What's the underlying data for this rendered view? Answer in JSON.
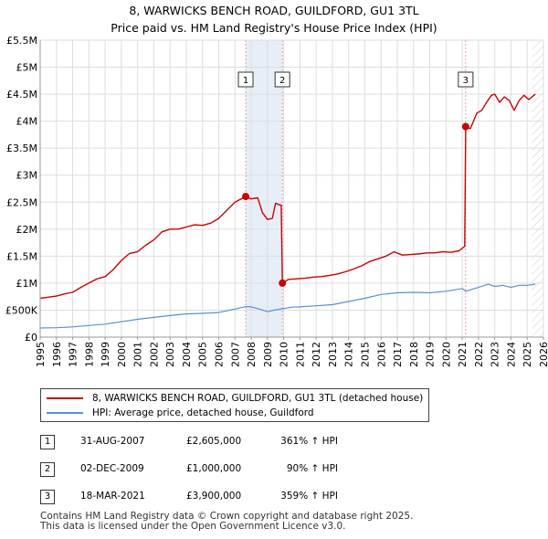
{
  "title": {
    "line1": "8, WARWICKS BENCH ROAD, GUILDFORD, GU1 3TL",
    "line2": "Price paid vs. HM Land Registry's House Price Index (HPI)"
  },
  "colors": {
    "property_line": "#cc0000",
    "hpi_line": "#5b8ed6",
    "shade": "#e8eef8",
    "grid": "#dddddd",
    "marker_line": "#e89aa8"
  },
  "legend": {
    "property_label": "8, WARWICKS BENCH ROAD, GUILDFORD, GU1 3TL (detached house)",
    "hpi_label": "HPI: Average price, detached house, Guildford"
  },
  "transactions": [
    {
      "num": "1",
      "date": "31-AUG-2007",
      "price": "£2,605,000",
      "hpi": "361% ↑ HPI"
    },
    {
      "num": "2",
      "date": "02-DEC-2009",
      "price": "£1,000,000",
      "hpi": "90% ↑ HPI"
    },
    {
      "num": "3",
      "date": "18-MAR-2021",
      "price": "£3,900,000",
      "hpi": "359% ↑ HPI"
    }
  ],
  "footer": {
    "line1": "Contains HM Land Registry data © Crown copyright and database right 2025.",
    "line2": "This data is licensed under the Open Government Licence v3.0."
  },
  "chart_data": {
    "type": "line",
    "title": "8, WARWICKS BENCH ROAD, GUILDFORD, GU1 3TL — Price paid vs. HM Land Registry's House Price Index (HPI)",
    "xlabel": "",
    "ylabel": "",
    "xlim": [
      1995,
      2026
    ],
    "ylim": [
      0,
      5500000
    ],
    "grid": true,
    "legend_position": "bottom",
    "y_ticks": [
      {
        "value": 0,
        "label": "£0"
      },
      {
        "value": 500000,
        "label": "£500K"
      },
      {
        "value": 1000000,
        "label": "£1M"
      },
      {
        "value": 1500000,
        "label": "£1.5M"
      },
      {
        "value": 2000000,
        "label": "£2M"
      },
      {
        "value": 2500000,
        "label": "£2.5M"
      },
      {
        "value": 3000000,
        "label": "£3M"
      },
      {
        "value": 3500000,
        "label": "£3.5M"
      },
      {
        "value": 4000000,
        "label": "£4M"
      },
      {
        "value": 4500000,
        "label": "£4.5M"
      },
      {
        "value": 5000000,
        "label": "£5M"
      },
      {
        "value": 5500000,
        "label": "£5.5M"
      }
    ],
    "x_ticks": [
      "1995",
      "1996",
      "1997",
      "1998",
      "1999",
      "2000",
      "2001",
      "2002",
      "2003",
      "2004",
      "2005",
      "2006",
      "2007",
      "2008",
      "2009",
      "2010",
      "2011",
      "2012",
      "2013",
      "2014",
      "2015",
      "2016",
      "2017",
      "2018",
      "2019",
      "2020",
      "2021",
      "2022",
      "2023",
      "2024",
      "2025",
      "2026"
    ],
    "shaded_ranges": [
      [
        2007.66,
        2009.92
      ]
    ],
    "projection_start": 2025.3,
    "series": [
      {
        "name": "8, WARWICKS BENCH ROAD, GUILDFORD, GU1 3TL (detached house)",
        "color": "#cc0000",
        "x": [
          1995.0,
          1995.5,
          1996.0,
          1996.5,
          1997.0,
          1997.5,
          1998.0,
          1998.5,
          1999.0,
          1999.5,
          2000.0,
          2000.5,
          2001.0,
          2001.5,
          2002.0,
          2002.5,
          2003.0,
          2003.5,
          2004.0,
          2004.5,
          2005.0,
          2005.5,
          2006.0,
          2006.5,
          2007.0,
          2007.66,
          2008.0,
          2008.4,
          2008.7,
          2009.0,
          2009.3,
          2009.5,
          2009.85,
          2009.92,
          2010.3,
          2010.8,
          2011.3,
          2011.8,
          2012.3,
          2012.8,
          2013.3,
          2013.8,
          2014.3,
          2014.8,
          2015.3,
          2015.8,
          2016.3,
          2016.8,
          2017.3,
          2017.8,
          2018.3,
          2018.8,
          2019.3,
          2019.8,
          2020.3,
          2020.8,
          2021.15,
          2021.21,
          2021.5,
          2021.9,
          2022.2,
          2022.5,
          2022.8,
          2023.0,
          2023.3,
          2023.6,
          2023.9,
          2024.2,
          2024.5,
          2024.8,
          2025.1,
          2025.5
        ],
        "y": [
          720000,
          740000,
          760000,
          800000,
          830000,
          920000,
          1000000,
          1080000,
          1120000,
          1250000,
          1420000,
          1550000,
          1580000,
          1700000,
          1800000,
          1950000,
          2000000,
          2000000,
          2040000,
          2080000,
          2070000,
          2110000,
          2200000,
          2350000,
          2500000,
          2605000,
          2560000,
          2580000,
          2300000,
          2180000,
          2200000,
          2480000,
          2440000,
          1000000,
          1070000,
          1080000,
          1090000,
          1110000,
          1120000,
          1140000,
          1170000,
          1210000,
          1260000,
          1320000,
          1400000,
          1450000,
          1500000,
          1580000,
          1520000,
          1530000,
          1540000,
          1560000,
          1560000,
          1580000,
          1570000,
          1600000,
          1680000,
          3900000,
          3860000,
          4150000,
          4200000,
          4350000,
          4480000,
          4500000,
          4350000,
          4450000,
          4380000,
          4200000,
          4380000,
          4480000,
          4400000,
          4500000
        ]
      },
      {
        "name": "HPI: Average price, detached house, Guildford",
        "color": "#5b8ed6",
        "x": [
          1995.0,
          1996.0,
          1997.0,
          1998.0,
          1999.0,
          2000.0,
          2001.0,
          2002.0,
          2003.0,
          2004.0,
          2005.0,
          2006.0,
          2007.0,
          2007.66,
          2008.0,
          2008.5,
          2009.0,
          2009.4,
          2009.92,
          2010.5,
          2011.0,
          2012.0,
          2013.0,
          2014.0,
          2015.0,
          2016.0,
          2017.0,
          2018.0,
          2019.0,
          2020.0,
          2021.0,
          2021.21,
          2022.0,
          2022.6,
          2023.0,
          2023.5,
          2024.0,
          2024.5,
          2025.0,
          2025.5
        ],
        "y": [
          170000,
          175000,
          190000,
          215000,
          240000,
          285000,
          330000,
          365000,
          400000,
          430000,
          440000,
          455000,
          520000,
          565000,
          560000,
          520000,
          470000,
          500000,
          525000,
          555000,
          560000,
          580000,
          600000,
          660000,
          720000,
          790000,
          820000,
          830000,
          820000,
          850000,
          900000,
          849000,
          920000,
          980000,
          940000,
          960000,
          920000,
          960000,
          960000,
          980000
        ]
      }
    ],
    "sale_points": [
      {
        "label": "1",
        "x": 2007.66,
        "y": 2605000
      },
      {
        "label": "2",
        "x": 2009.92,
        "y": 1000000
      },
      {
        "label": "3",
        "x": 2021.21,
        "y": 3900000
      }
    ]
  }
}
